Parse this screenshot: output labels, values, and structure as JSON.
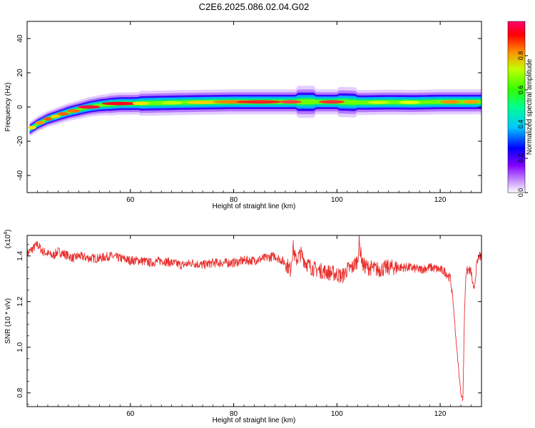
{
  "figure": {
    "title": "C2E6.2025.086.02.04.G02"
  },
  "chart_data": [
    {
      "type": "heatmap",
      "xlabel": "Height of straight line (km)",
      "ylabel": "Frequency (Hz)",
      "xlim": [
        40,
        128
      ],
      "ylim": [
        -50,
        50
      ],
      "xticks": [
        60,
        80,
        100,
        120
      ],
      "yticks": [
        40,
        20,
        0,
        -20,
        -40
      ],
      "colorbar": {
        "label": "Normalized spectral amplitude",
        "ticks": [
          0.0,
          0.2,
          0.4,
          0.6,
          0.8
        ],
        "range": [
          0,
          1
        ],
        "colormap": [
          "#ffffff",
          "#a000ff",
          "#0000ff",
          "#00c8ff",
          "#00ff80",
          "#40ff00",
          "#ffff00",
          "#ff8000",
          "#ff0000",
          "#ff0060"
        ]
      },
      "ridge": {
        "x": [
          40.5,
          42,
          44,
          46,
          48,
          50,
          52,
          54,
          56,
          58,
          60,
          65,
          70,
          75,
          80,
          85,
          90,
          95,
          100,
          105,
          110,
          115,
          120,
          125,
          128
        ],
        "frequency": [
          -13,
          -10,
          -7,
          -5,
          -3,
          -1.5,
          0,
          1,
          1.5,
          2,
          2,
          2.3,
          2.6,
          2.8,
          3,
          3,
          3,
          3,
          3,
          2.6,
          2.8,
          2.7,
          3,
          3,
          3
        ]
      }
    },
    {
      "type": "line",
      "xlabel": "Height of straight line (km)",
      "ylabel": "SNR (10 * v/v)",
      "y_multiplier": "x10^4",
      "xlim": [
        40,
        128
      ],
      "ylim": [
        0.74,
        1.49
      ],
      "xticks": [
        60,
        80,
        100,
        120
      ],
      "yticks": [
        0.8,
        1.0,
        1.2,
        1.4
      ],
      "series": [
        {
          "color": "#e8302e",
          "x": [
            40,
            41,
            42,
            43,
            44,
            45,
            46,
            47,
            48,
            49,
            50,
            52,
            54,
            56,
            58,
            60,
            62,
            64,
            66,
            68,
            70,
            72,
            74,
            76,
            78,
            80,
            82,
            84,
            86,
            88,
            90,
            91,
            91.5,
            92,
            93,
            94,
            95,
            96,
            98,
            100,
            101,
            102,
            103,
            104,
            104.3,
            105,
            106,
            108,
            110,
            112,
            114,
            116,
            118,
            120,
            121,
            122,
            122.5,
            123,
            123.5,
            124,
            124.4,
            124.7,
            125,
            125.5,
            126,
            126.5,
            127,
            127.5,
            128
          ],
          "values": [
            1.41,
            1.43,
            1.45,
            1.42,
            1.41,
            1.4,
            1.42,
            1.41,
            1.4,
            1.39,
            1.4,
            1.39,
            1.39,
            1.4,
            1.39,
            1.38,
            1.38,
            1.37,
            1.38,
            1.37,
            1.36,
            1.37,
            1.36,
            1.37,
            1.37,
            1.37,
            1.38,
            1.38,
            1.39,
            1.4,
            1.37,
            1.34,
            1.44,
            1.38,
            1.41,
            1.37,
            1.35,
            1.34,
            1.33,
            1.32,
            1.31,
            1.34,
            1.35,
            1.38,
            1.46,
            1.36,
            1.35,
            1.34,
            1.35,
            1.35,
            1.35,
            1.34,
            1.35,
            1.34,
            1.33,
            1.3,
            1.2,
            1.05,
            0.92,
            0.8,
            0.77,
            1.15,
            1.33,
            1.34,
            1.33,
            1.24,
            1.35,
            1.4,
            1.39
          ]
        }
      ]
    }
  ]
}
